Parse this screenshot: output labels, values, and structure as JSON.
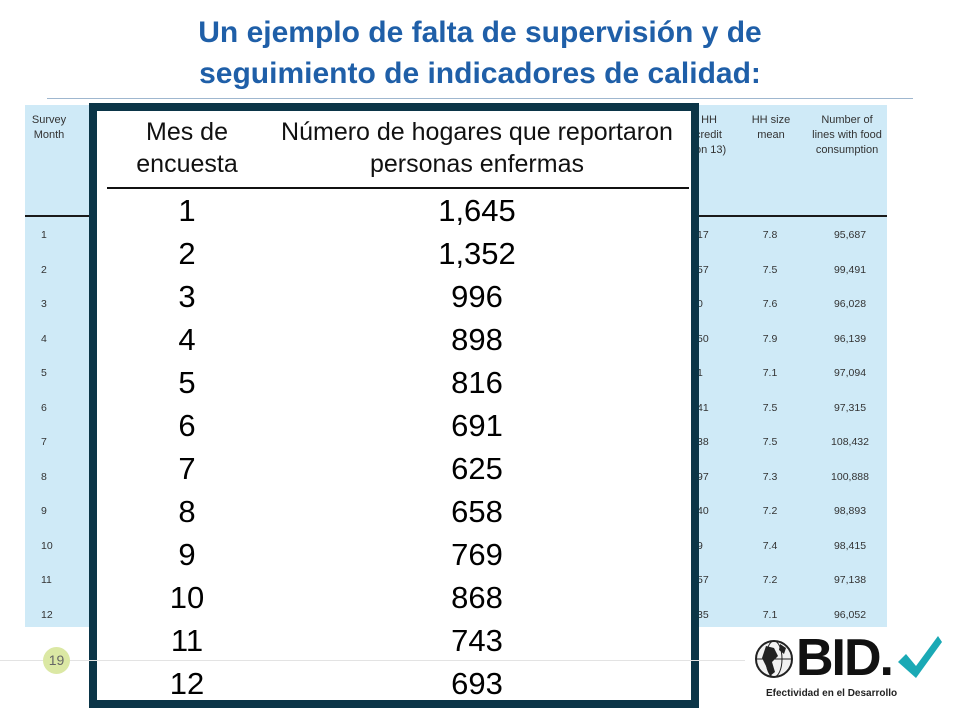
{
  "title": {
    "line1": "Un ejemplo de falta de supervisión y de",
    "line2": "seguimiento de indicadores de calidad:"
  },
  "background_table": {
    "col1_header": [
      "Survey",
      "Month"
    ],
    "col2_header_partial": [
      "f HH",
      "credit",
      "on 13)"
    ],
    "col3_header": [
      "HH size",
      "mean"
    ],
    "col4_header": [
      "Number of",
      "lines with food",
      "consumption"
    ],
    "rows": [
      {
        "month": "1",
        "partial": "17",
        "hh_size": "7.8",
        "lines": "95,687"
      },
      {
        "month": "2",
        "partial": "57",
        "hh_size": "7.5",
        "lines": "99,491"
      },
      {
        "month": "3",
        "partial": "0",
        "hh_size": "7.6",
        "lines": "96,028"
      },
      {
        "month": "4",
        "partial": "50",
        "hh_size": "7.9",
        "lines": "96,139"
      },
      {
        "month": "5",
        "partial": "1",
        "hh_size": "7.1",
        "lines": "97,094"
      },
      {
        "month": "6",
        "partial": "41",
        "hh_size": "7.5",
        "lines": "97,315"
      },
      {
        "month": "7",
        "partial": "38",
        "hh_size": "7.5",
        "lines": "108,432"
      },
      {
        "month": "8",
        "partial": "97",
        "hh_size": "7.3",
        "lines": "100,888"
      },
      {
        "month": "9",
        "partial": "40",
        "hh_size": "7.2",
        "lines": "98,893"
      },
      {
        "month": "10",
        "partial": "9",
        "hh_size": "7.4",
        "lines": "98,415"
      },
      {
        "month": "11",
        "partial": "57",
        "hh_size": "7.2",
        "lines": "97,138"
      },
      {
        "month": "12",
        "partial": "35",
        "hh_size": "7.1",
        "lines": "96,052"
      }
    ]
  },
  "overlay_table": {
    "col1_header": [
      "Mes de",
      "encuesta"
    ],
    "col2_header": [
      "Número de hogares que reportaron",
      "personas enfermas"
    ],
    "rows": [
      {
        "mes": "1",
        "hogares": "1,645"
      },
      {
        "mes": "2",
        "hogares": "1,352"
      },
      {
        "mes": "3",
        "hogares": "996"
      },
      {
        "mes": "4",
        "hogares": "898"
      },
      {
        "mes": "5",
        "hogares": "816"
      },
      {
        "mes": "6",
        "hogares": "691"
      },
      {
        "mes": "7",
        "hogares": "625"
      },
      {
        "mes": "8",
        "hogares": "658"
      },
      {
        "mes": "9",
        "hogares": "769"
      },
      {
        "mes": "10",
        "hogares": "868"
      },
      {
        "mes": "11",
        "hogares": "743"
      },
      {
        "mes": "12",
        "hogares": "693"
      }
    ]
  },
  "footer": {
    "page_number": "19",
    "logo_text": "BID.",
    "logo_subtitle": "Efectividad en el Desarrollo",
    "logo_icons": [
      "globe-icon",
      "checkmark-icon"
    ],
    "colors": {
      "title": "#1f5fa8",
      "overlay_border": "#0b3547",
      "table_bg": "#cfeaf7",
      "check": "#1aa9b5"
    }
  }
}
